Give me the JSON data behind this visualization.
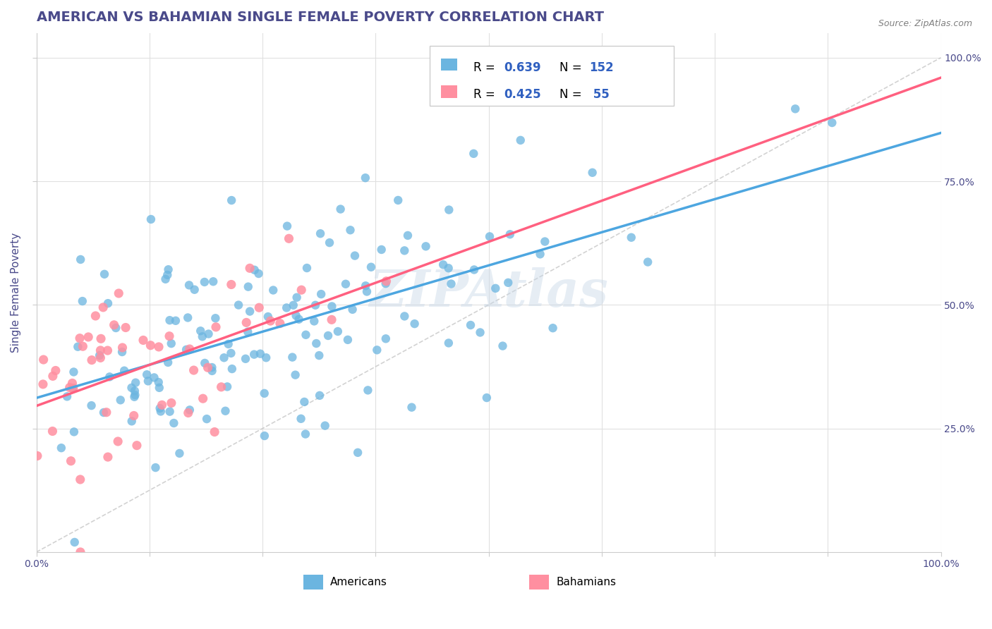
{
  "title": "AMERICAN VS BAHAMIAN SINGLE FEMALE POVERTY CORRELATION CHART",
  "source": "Source: ZipAtlas.com",
  "ylabel": "Single Female Poverty",
  "american_color": "#6bb5e0",
  "bahamian_color": "#ff8fa0",
  "trendline_color": "#4da6e0",
  "bahamian_trendline_color": "#ff6080",
  "diagonal_color": "#c0c0c0",
  "watermark": "ZIPAtlas",
  "background_color": "#ffffff",
  "grid_color": "#e0e0e0",
  "title_color": "#4a4a8a",
  "axis_label_color": "#4a4a8a",
  "tick_label_color": "#4a4a8a",
  "source_color": "#808080",
  "legend_R_color": "#3060c0",
  "seed": 42,
  "n_american": 152,
  "n_bahamian": 55
}
